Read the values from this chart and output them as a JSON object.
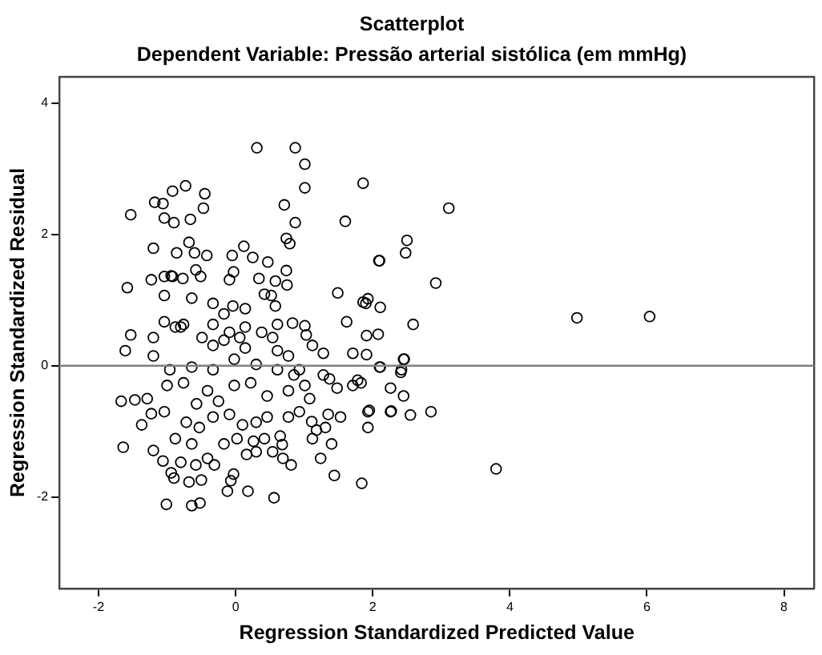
{
  "chart_data": {
    "type": "scatter",
    "title": "Scatterplot",
    "subtitle": "Dependent Variable: Pressão arterial sistólica (em mmHg)",
    "xlabel": "Regression Standardized Predicted Value",
    "ylabel": "Regression Standardized Residual",
    "xlim": [
      -2.57,
      8.44
    ],
    "ylim": [
      -3.39,
      4.4
    ],
    "xticks": [
      -2,
      0,
      2,
      4,
      6,
      8
    ],
    "yticks": [
      -2,
      0,
      2,
      4
    ],
    "grid": false,
    "legend": false,
    "marker": "circle",
    "ref_lines": [
      {
        "axis": "y",
        "value": 0,
        "color": "#808080"
      }
    ],
    "series": [
      {
        "color": "#000000",
        "x": [
          0.31,
          0.87,
          1.01,
          1.01,
          1.86,
          -1.53,
          -1.18,
          -1.06,
          -0.92,
          -0.73,
          -0.45,
          -0.47,
          -0.66,
          -1.04,
          -0.9,
          0.71,
          0.87,
          1.6,
          3.11,
          2.5,
          2.48,
          2.1,
          2.92,
          2.59,
          4.98,
          6.04,
          3.8,
          1.84,
          1.93,
          1.86,
          2.08,
          1.91,
          1.91,
          2.45,
          2.41,
          2.1,
          2.26,
          2.45,
          1.93,
          2.26,
          2.55,
          2.85,
          1.93,
          -1.2,
          -0.86,
          -0.68,
          -0.6,
          -0.42,
          -1.58,
          -1.23,
          -0.05,
          0.12,
          0.25,
          0.47,
          0.74,
          0.79,
          2.09,
          1.49,
          1.9,
          2.11,
          1.62,
          0.74,
          0.75,
          0.34,
          0.58,
          -0.09,
          -0.03,
          -1.04,
          -0.94,
          -0.77,
          -0.58,
          -0.51,
          -0.33,
          -0.17,
          -0.04,
          0.14,
          0.42,
          0.52,
          0.58,
          0.83,
          1.01,
          1.03,
          1.12,
          1.28,
          -1.53,
          -1.61,
          -1.2,
          -1.2,
          -1.04,
          -0.88,
          -0.76,
          -1.04,
          -0.92,
          -0.64,
          -0.49,
          -0.33,
          -0.17,
          0.06,
          0.14,
          0.54,
          0.61,
          0.77,
          0.93,
          1.71,
          2.11,
          2.42,
          2.46,
          -1.67,
          -1.47,
          -1.29,
          -1.37,
          -1.23,
          -1.64,
          -1.2,
          -1.06,
          -0.94,
          -0.9,
          -1.01,
          -0.64,
          -0.52,
          -0.68,
          -0.5,
          -0.8,
          -0.58,
          -0.41,
          -0.31,
          -0.03,
          -0.07,
          -0.12,
          0.18,
          0.56,
          0.16,
          0.3,
          0.54,
          0.69,
          0.81,
          0.65,
          0.68,
          0.77,
          0.93,
          1.11,
          1.18,
          1.31,
          1.08,
          1.12,
          1.24,
          1.35,
          1.53,
          1.4,
          1.44,
          1.95,
          2.27,
          1.78,
          1.83,
          1.71,
          1.37,
          1.48,
          1.28,
          -1.0,
          -0.76,
          -0.57,
          -0.41,
          -0.25,
          -0.02,
          0.22,
          0.46,
          -0.72,
          -0.53,
          -0.33,
          -0.09,
          0.1,
          0.3,
          -0.88,
          -0.64,
          -0.17,
          0.02,
          0.26,
          -0.96,
          -0.64,
          -0.33,
          -0.02,
          0.3,
          0.61,
          0.85,
          1.01,
          0.46,
          0.42,
          0.77,
          -1.04,
          -0.8,
          -0.33,
          -0.09,
          0.14,
          0.38,
          0.61
        ],
        "values": [
          3.32,
          3.32,
          3.07,
          2.71,
          2.78,
          2.3,
          2.49,
          2.47,
          2.66,
          2.74,
          2.62,
          2.4,
          2.23,
          2.25,
          2.18,
          2.45,
          2.18,
          2.2,
          2.4,
          1.91,
          1.72,
          1.6,
          1.26,
          0.63,
          0.73,
          0.75,
          -1.57,
          -1.79,
          1.02,
          0.97,
          0.48,
          0.46,
          0.17,
          0.1,
          -0.1,
          -0.02,
          -0.34,
          -0.46,
          -0.7,
          -0.7,
          -0.75,
          -0.7,
          -0.94,
          1.79,
          1.72,
          1.88,
          1.72,
          1.68,
          1.19,
          1.31,
          1.68,
          1.82,
          1.65,
          1.58,
          1.94,
          1.86,
          1.6,
          1.11,
          0.95,
          0.89,
          0.67,
          1.45,
          1.23,
          1.33,
          1.29,
          1.31,
          1.43,
          1.36,
          1.37,
          1.33,
          1.46,
          1.36,
          0.95,
          0.79,
          0.91,
          0.87,
          1.09,
          1.07,
          0.91,
          0.65,
          0.61,
          0.47,
          0.31,
          0.19,
          0.47,
          0.23,
          0.43,
          0.15,
          0.67,
          0.59,
          0.63,
          1.07,
          1.36,
          1.03,
          0.43,
          0.31,
          0.39,
          0.43,
          0.27,
          0.43,
          0.23,
          0.15,
          -0.06,
          0.19,
          -0.02,
          -0.06,
          0.1,
          -0.54,
          -0.52,
          -0.5,
          -0.9,
          -0.73,
          -1.24,
          -1.29,
          -1.45,
          -1.63,
          -1.71,
          -2.11,
          -2.13,
          -2.09,
          -1.77,
          -1.74,
          -1.47,
          -1.51,
          -1.41,
          -1.51,
          -1.65,
          -1.75,
          -1.91,
          -1.91,
          -2.01,
          -1.35,
          -1.31,
          -1.31,
          -1.41,
          -1.51,
          -1.07,
          -1.2,
          -0.78,
          -0.7,
          -0.85,
          -0.98,
          -0.94,
          -0.5,
          -1.11,
          -1.41,
          -0.74,
          -0.78,
          -1.19,
          -1.67,
          -0.68,
          -0.69,
          -0.22,
          -0.26,
          -0.3,
          -0.2,
          -0.34,
          -0.14,
          -0.3,
          -0.26,
          -0.58,
          -0.38,
          -0.54,
          -0.3,
          -0.26,
          -0.46,
          -0.86,
          -0.94,
          -0.78,
          -0.74,
          -0.9,
          -0.86,
          -1.11,
          -1.19,
          -1.19,
          -1.11,
          -1.15,
          -0.06,
          -0.02,
          -0.06,
          0.1,
          0.02,
          -0.06,
          -0.14,
          -0.3,
          -0.78,
          -1.11,
          -0.38,
          -0.7,
          0.59,
          0.63,
          0.51,
          0.59,
          0.51,
          0.63
        ]
      }
    ]
  }
}
